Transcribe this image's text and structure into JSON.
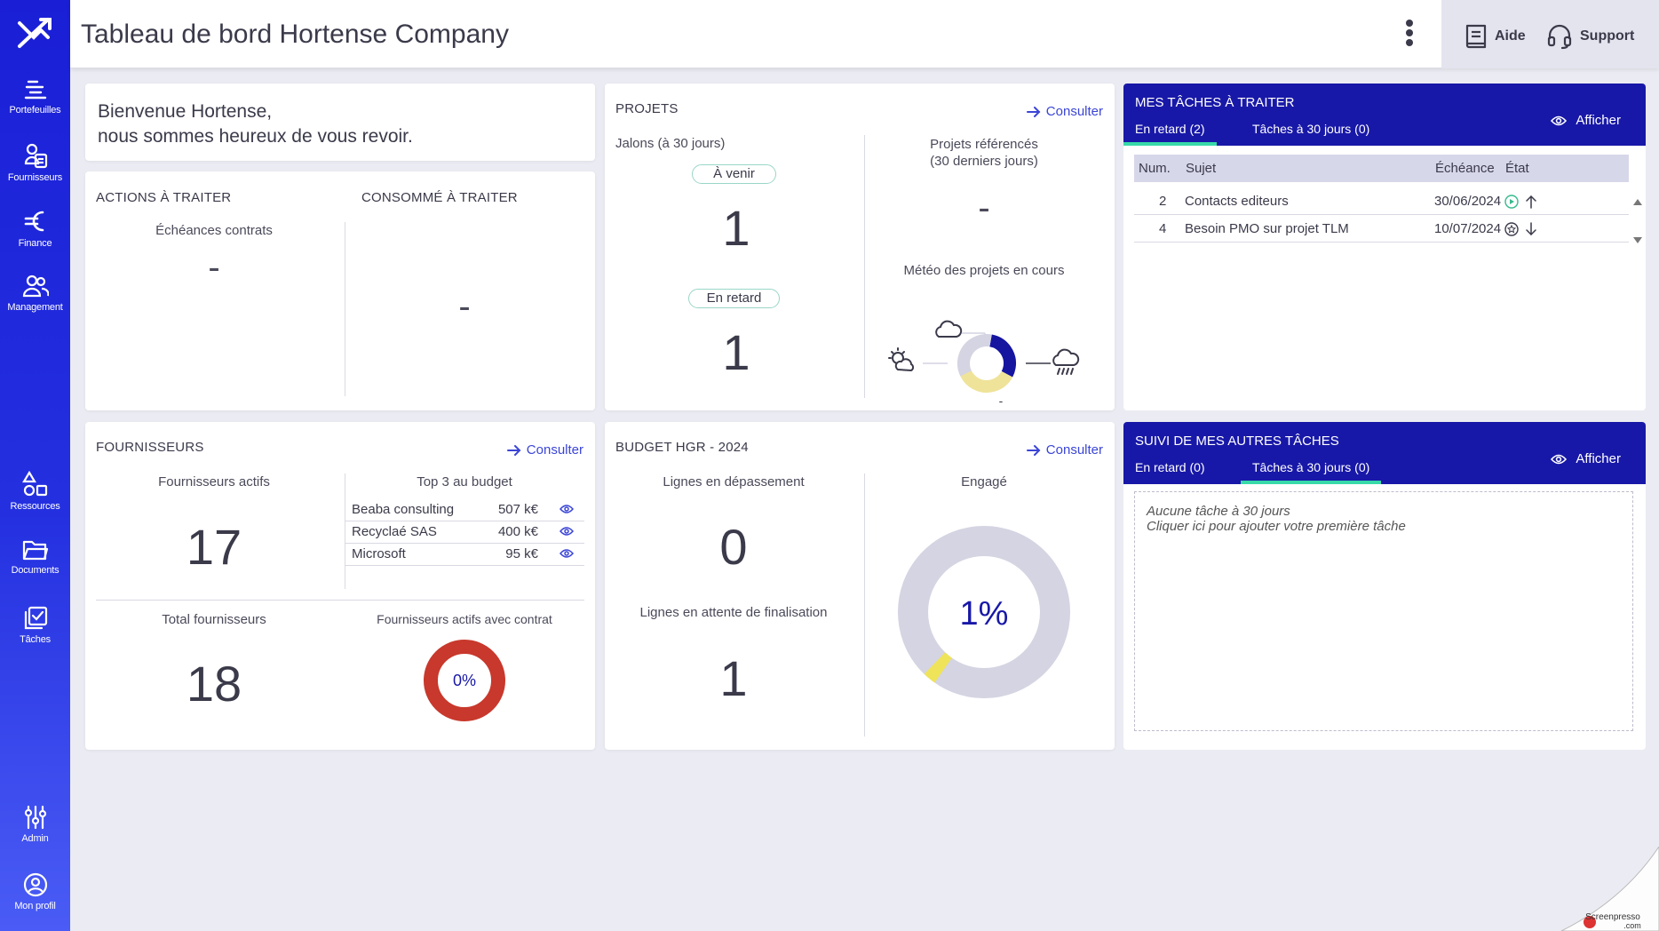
{
  "sidebar": {
    "items": [
      {
        "label": "Portefeuilles",
        "icon": "portfolio-icon"
      },
      {
        "label": "Fournisseurs",
        "icon": "suppliers-icon"
      },
      {
        "label": "Finance",
        "icon": "euro-icon"
      },
      {
        "label": "Management",
        "icon": "people-icon"
      },
      {
        "label": "Ressources",
        "icon": "shapes-icon"
      },
      {
        "label": "Documents",
        "icon": "folder-icon"
      },
      {
        "label": "Tâches",
        "icon": "tasks-icon"
      },
      {
        "label": "Admin",
        "icon": "sliders-icon"
      },
      {
        "label": "Mon profil",
        "icon": "user-circle-icon"
      }
    ]
  },
  "header": {
    "title": "Tableau de bord Hortense Company",
    "help_label": "Aide",
    "support_label": "Support"
  },
  "welcome": {
    "line1": "Bienvenue Hortense,",
    "line2": "nous sommes heureux de vous revoir."
  },
  "actions": {
    "title": "ACTIONS À TRAITER",
    "contracts_label": "Échéances contrats",
    "contracts_value": "-",
    "consumed_title": "CONSOMMÉ À TRAITER",
    "consumed_value": "-"
  },
  "projects": {
    "title": "PROJETS",
    "consult": "Consulter",
    "milestones_label": "Jalons (à 30 jours)",
    "upcoming_label": "À venir",
    "upcoming_value": "1",
    "late_label": "En retard",
    "late_value": "1",
    "referenced_label_1": "Projets référencés",
    "referenced_label_2": "(30 derniers jours)",
    "referenced_value": "-",
    "weather_label": "Météo des projets en cours",
    "weather_dash": "-",
    "weather_shares": {
      "sunny": 0.35,
      "cloudy": 0.35,
      "rainy": 0.3
    },
    "colors": {
      "sunny": "#efe39a",
      "cloudy": "#d4d4e2",
      "rainy": "#1515a0"
    }
  },
  "my_tasks": {
    "title": "MES TÂCHES À TRAITER",
    "tab_late": "En retard (2)",
    "tab_30": "Tâches à 30 jours (0)",
    "show": "Afficher",
    "columns": [
      "Num.",
      "Sujet",
      "Échéance",
      "État"
    ],
    "rows": [
      {
        "num": "2",
        "subject": "Contacts editeurs",
        "due": "30/06/2024"
      },
      {
        "num": "4",
        "subject": "Besoin PMO sur projet TLM",
        "due": "10/07/2024"
      }
    ]
  },
  "suppliers": {
    "title": "FOURNISSEURS",
    "consult": "Consulter",
    "active_label": "Fournisseurs actifs",
    "active_value": "17",
    "top3_label": "Top 3 au budget",
    "top3": [
      {
        "name": "Beaba consulting",
        "value": "507 k€"
      },
      {
        "name": "Recyclaé SAS",
        "value": "400 k€"
      },
      {
        "name": "Microsoft",
        "value": "95 k€"
      }
    ],
    "total_label": "Total fournisseurs",
    "total_value": "18",
    "with_contract_label": "Fournisseurs actifs avec contrat",
    "with_contract_value": "0%",
    "ring_color": "#c8382c"
  },
  "budget": {
    "title": "BUDGET HGR - 2024",
    "consult": "Consulter",
    "over_label": "Lignes en dépassement",
    "over_value": "0",
    "pending_label": "Lignes en attente de finalisation",
    "pending_value": "1",
    "engaged_label": "Engagé",
    "engaged_value": "1%",
    "engaged_fraction": 0.01,
    "colors": {
      "track": "#d4d4e2",
      "fill": "#efe35a"
    }
  },
  "other_tasks": {
    "title": "SUIVI DE MES AUTRES TÂCHES",
    "tab_late": "En retard (0)",
    "tab_30": "Tâches à 30 jours (0)",
    "show": "Afficher",
    "empty_1": "Aucune tâche à 30 jours",
    "empty_2": "Cliquer ici pour ajouter votre première tâche"
  },
  "watermark": {
    "text_1": "Screenpresso",
    "text_2": ".com"
  },
  "theme": {
    "primary": "#1818a8",
    "accent": "#37d9a8",
    "link": "#3b45d6"
  }
}
